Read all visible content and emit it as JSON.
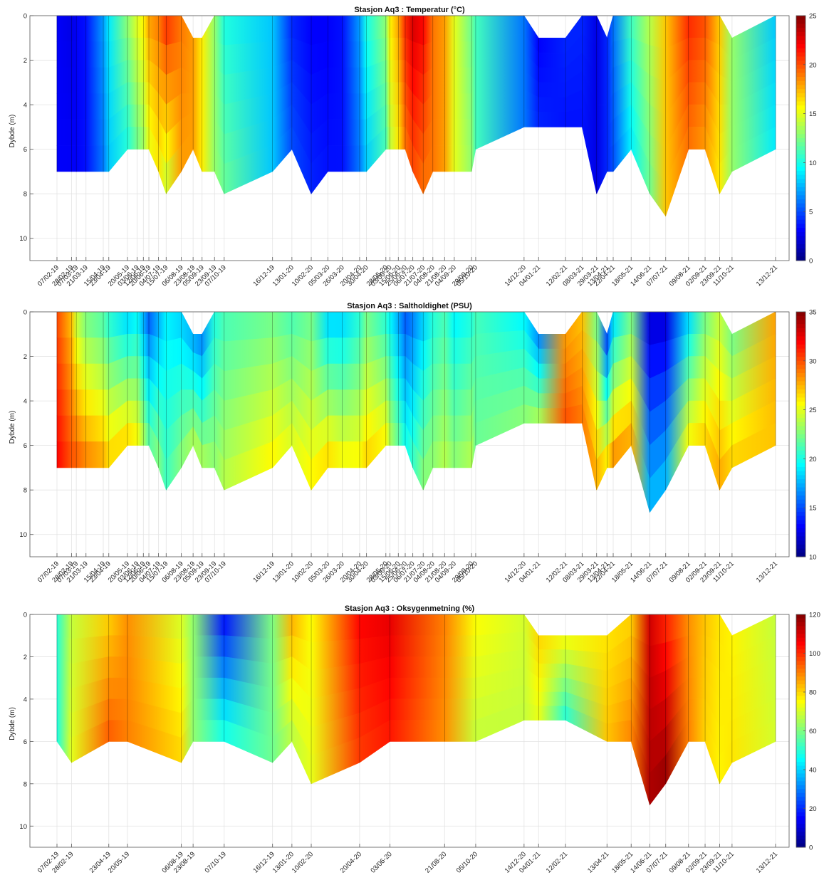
{
  "chart_data": [
    {
      "type": "heatmap",
      "title": "Stasjon Aq3 :  Temperatur (°C)",
      "ylabel": "Dybde (m)",
      "ylim": [
        0,
        11
      ],
      "y_ticks": [
        0,
        2,
        4,
        6,
        8,
        10
      ],
      "colorbar": {
        "ticks": [
          0,
          5,
          10,
          15,
          20,
          25
        ],
        "range": [
          0,
          25
        ]
      },
      "contour_levels": [
        4,
        18
      ],
      "x_ticks": [
        "07/02-19",
        "28/02-19",
        "07/03-19",
        "21/03-19",
        "15/04-19",
        "23/04-19",
        "20/05-19",
        "03/06-19",
        "12/06-19",
        "20/06-19",
        "04/07-19",
        "15/07-19",
        "06/08-19",
        "23/08-19",
        "05/09-19",
        "23/09-19",
        "07/10-19",
        "16/12-19",
        "13/01-20",
        "10/02-20",
        "05/03-20",
        "26/03-20",
        "20/04-20",
        "30/04-20",
        "28/05-20",
        "03/06-20",
        "15/06-20",
        "25/06-20",
        "06/07-20",
        "21/07-20",
        "04/08-20",
        "21/08-20",
        "04/09-20",
        "29/09-20",
        "05/10-20",
        "14/12-20",
        "04/01-21",
        "12/02-21",
        "08/03-21",
        "29/03-21",
        "13/04-21",
        "22/04-21",
        "18/05-21",
        "14/06-21",
        "07/07-21",
        "09/08-21",
        "02/09-21",
        "23/09-21",
        "11/10-21",
        "13/12-21"
      ],
      "x_days": [
        0,
        21,
        28,
        42,
        67,
        75,
        102,
        116,
        125,
        133,
        147,
        158,
        180,
        197,
        210,
        228,
        242,
        312,
        340,
        368,
        392,
        413,
        438,
        448,
        476,
        482,
        494,
        504,
        515,
        530,
        544,
        561,
        575,
        600,
        606,
        676,
        697,
        736,
        760,
        781,
        796,
        805,
        831,
        858,
        881,
        914,
        938,
        959,
        977,
        1040
      ],
      "max_depth": [
        7,
        7,
        7,
        7,
        7,
        7,
        6,
        6,
        6,
        6,
        7,
        8,
        7,
        6,
        7,
        7,
        8,
        7,
        6,
        8,
        7,
        7,
        7,
        7,
        6,
        6,
        6,
        6,
        7,
        8,
        7,
        7,
        7,
        7,
        6,
        5,
        5,
        5,
        5,
        8,
        7,
        7,
        6,
        8,
        9,
        6,
        6,
        8,
        7,
        6
      ],
      "min_depth": [
        0,
        0,
        0,
        0,
        0,
        0,
        0,
        0,
        0,
        0,
        0,
        0,
        0,
        1,
        1,
        0,
        0,
        0,
        0,
        0,
        0,
        0,
        0,
        0,
        0,
        0,
        0,
        0,
        0,
        0,
        0,
        0,
        0,
        0,
        0,
        0,
        1,
        1,
        0,
        0,
        1,
        0,
        0,
        0,
        0,
        0,
        0,
        0,
        1,
        0
      ],
      "surface_values": [
        3,
        2.5,
        3,
        3.5,
        7,
        9,
        13,
        15,
        16,
        18,
        19,
        21,
        19,
        18,
        16,
        13,
        10,
        8,
        4,
        3,
        3,
        3.5,
        7,
        10,
        13,
        16,
        18,
        21,
        23,
        22,
        19,
        18,
        15,
        12,
        11,
        6,
        3,
        4,
        4,
        2.5,
        4,
        6,
        11,
        14,
        17,
        21,
        20,
        17,
        13,
        8
      ],
      "bottom_values": [
        3,
        3,
        3,
        3.5,
        6,
        8,
        10,
        12,
        13,
        15,
        16,
        14,
        18,
        18,
        16,
        13,
        12,
        8,
        5,
        4,
        3.5,
        3.5,
        6,
        8,
        11,
        14,
        16,
        19,
        20,
        19,
        19,
        18,
        15,
        13,
        11,
        6,
        4,
        3.5,
        3.5,
        2.5,
        4,
        5,
        9,
        12,
        17,
        19,
        18,
        16,
        13,
        9
      ]
    },
    {
      "type": "heatmap",
      "title": "Stasjon Aq3 :  Saltholdighet (PSU)",
      "ylabel": "Dybde (m)",
      "ylim": [
        0,
        11
      ],
      "y_ticks": [
        0,
        2,
        4,
        6,
        8,
        10
      ],
      "colorbar": {
        "ticks": [
          10,
          15,
          20,
          25,
          30,
          35
        ],
        "range": [
          10,
          35
        ]
      },
      "x_ticks": [
        "07/02-19",
        "28/02-19",
        "07/03-19",
        "21/03-19",
        "15/04-19",
        "23/04-19",
        "20/05-19",
        "03/06-19",
        "12/06-19",
        "20/06-19",
        "04/07-19",
        "15/07-19",
        "06/08-19",
        "23/08-19",
        "05/09-19",
        "23/09-19",
        "07/10-19",
        "16/12-19",
        "13/01-20",
        "10/02-20",
        "05/03-20",
        "26/03-20",
        "20/04-20",
        "30/04-20",
        "28/05-20",
        "03/06-20",
        "15/06-20",
        "25/06-20",
        "06/07-20",
        "21/07-20",
        "04/08-20",
        "21/08-20",
        "04/09-20",
        "29/09-20",
        "05/10-20",
        "14/12-20",
        "04/01-21",
        "12/02-21",
        "08/03-21",
        "29/03-21",
        "13/04-21",
        "22/04-21",
        "18/05-21",
        "14/06-21",
        "07/07-21",
        "09/08-21",
        "02/09-21",
        "23/09-21",
        "11/10-21",
        "13/12-21"
      ],
      "x_days": [
        0,
        21,
        28,
        42,
        67,
        75,
        102,
        116,
        125,
        133,
        147,
        158,
        180,
        197,
        210,
        228,
        242,
        312,
        340,
        368,
        392,
        413,
        438,
        448,
        476,
        482,
        494,
        504,
        515,
        530,
        544,
        561,
        575,
        600,
        606,
        676,
        697,
        736,
        760,
        781,
        796,
        805,
        831,
        858,
        881,
        914,
        938,
        959,
        977,
        1040
      ],
      "max_depth": [
        7,
        7,
        7,
        7,
        7,
        7,
        6,
        6,
        6,
        6,
        7,
        8,
        7,
        6,
        7,
        7,
        8,
        7,
        6,
        8,
        7,
        7,
        7,
        7,
        6,
        6,
        6,
        6,
        7,
        8,
        7,
        7,
        7,
        7,
        6,
        5,
        5,
        5,
        5,
        8,
        7,
        7,
        6,
        9,
        8,
        6,
        6,
        8,
        7,
        6
      ],
      "min_depth": [
        0,
        0,
        0,
        0,
        0,
        0,
        0,
        0,
        0,
        0,
        0,
        0,
        0,
        1,
        1,
        0,
        0,
        0,
        0,
        0,
        0,
        0,
        0,
        0,
        0,
        0,
        0,
        0,
        0,
        0,
        0,
        0,
        0,
        0,
        0,
        0,
        1,
        1,
        0,
        0,
        1,
        0,
        0,
        0,
        0,
        0,
        0,
        0,
        1,
        0
      ],
      "surface_values": [
        30,
        27,
        24,
        22,
        21,
        20,
        18,
        19,
        17,
        15,
        17,
        19,
        18,
        17,
        16,
        20,
        21,
        22,
        21,
        22,
        18,
        18,
        20,
        22,
        20,
        19,
        17,
        15,
        16,
        18,
        20,
        21,
        19,
        20,
        21,
        19,
        16,
        28,
        27,
        22,
        14,
        18,
        22,
        12,
        12,
        18,
        22,
        24,
        22,
        28
      ],
      "bottom_values": [
        32,
        30,
        30,
        29,
        28,
        27,
        27,
        26,
        24,
        22,
        23,
        21,
        23,
        24,
        24,
        23,
        24,
        26,
        25,
        26,
        27,
        26,
        26,
        27,
        26,
        24,
        22,
        20,
        21,
        23,
        23,
        24,
        23,
        24,
        22,
        23,
        24,
        30,
        29,
        28,
        27,
        29,
        28,
        18,
        18,
        26,
        27,
        28,
        27,
        27
      ]
    },
    {
      "type": "heatmap",
      "title": "Stasjon Aq3 :  Oksygenmetning (%)",
      "ylabel": "Dybde (m)",
      "ylim": [
        0,
        11
      ],
      "y_ticks": [
        0,
        2,
        4,
        6,
        8,
        10
      ],
      "colorbar": {
        "ticks": [
          0,
          20,
          40,
          60,
          80,
          100,
          120
        ],
        "range": [
          0,
          120
        ]
      },
      "contour_levels": [
        50
      ],
      "x_ticks": [
        "07/02-19",
        "28/02-19",
        "23/04-19",
        "20/05-19",
        "06/08-19",
        "23/08-19",
        "07/10-19",
        "16/12-19",
        "13/01-20",
        "10/02-20",
        "20/04-20",
        "03/06-20",
        "21/08-20",
        "05/10-20",
        "14/12-20",
        "04/01-21",
        "12/02-21",
        "13/04-21",
        "18/05-21",
        "14/06-21",
        "07/07-21",
        "09/08-21",
        "02/09-21",
        "23/09-21",
        "11/10-21",
        "13/12-21"
      ],
      "x_days": [
        0,
        21,
        75,
        102,
        180,
        197,
        242,
        312,
        340,
        368,
        438,
        482,
        561,
        606,
        676,
        697,
        736,
        796,
        831,
        858,
        881,
        914,
        938,
        959,
        977,
        1040
      ],
      "max_depth": [
        6,
        7,
        6,
        6,
        7,
        6,
        6,
        7,
        6,
        8,
        7,
        6,
        6,
        6,
        5,
        5,
        5,
        6,
        6,
        9,
        8,
        6,
        6,
        8,
        7,
        6
      ],
      "min_depth": [
        0,
        0,
        0,
        0,
        0,
        0,
        0,
        0,
        0,
        0,
        0,
        0,
        0,
        0,
        0,
        1,
        1,
        1,
        0,
        0,
        0,
        0,
        0,
        0,
        1,
        0
      ],
      "surface_values": [
        50,
        68,
        80,
        88,
        70,
        62,
        15,
        60,
        85,
        75,
        105,
        108,
        90,
        75,
        70,
        80,
        75,
        78,
        80,
        110,
        100,
        88,
        82,
        78,
        76,
        68
      ],
      "bottom_values": [
        48,
        72,
        95,
        90,
        80,
        62,
        50,
        58,
        66,
        72,
        98,
        102,
        88,
        68,
        68,
        72,
        48,
        82,
        90,
        115,
        118,
        90,
        80,
        76,
        78,
        70
      ]
    }
  ]
}
